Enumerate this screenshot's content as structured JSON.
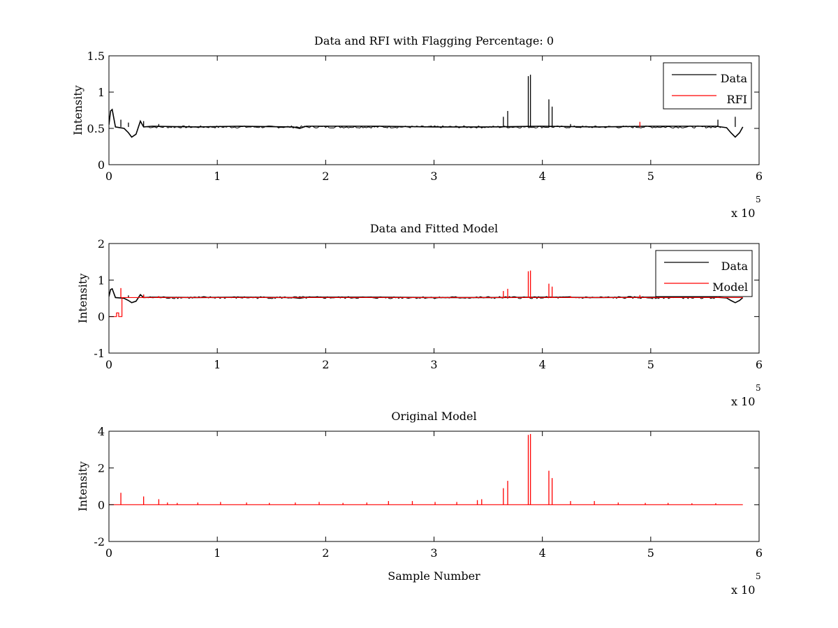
{
  "chart_data": [
    {
      "type": "line",
      "title": "Data and RFI with Flagging Percentage: 0",
      "xlabel": "",
      "ylabel": "Intensity",
      "xlim": [
        0,
        600000
      ],
      "ylim": [
        0,
        1.5
      ],
      "xticks": [
        0,
        100000,
        200000,
        300000,
        400000,
        500000,
        600000
      ],
      "xtick_labels": [
        "0",
        "1",
        "2",
        "3",
        "4",
        "5",
        "6"
      ],
      "yticks": [
        0,
        0.5,
        1,
        1.5
      ],
      "ytick_labels": [
        "0",
        "0.5",
        "1",
        "1.5"
      ],
      "x_multiplier": {
        "prefix": "x 10",
        "exponent": "5"
      },
      "grid": false,
      "legend": {
        "position": "top-right",
        "entries": [
          "Data",
          "RFI"
        ]
      },
      "series": [
        {
          "name": "Data",
          "color": "#000000",
          "baseline": 0.52,
          "x": [
            0,
            1500,
            3000,
            6000,
            10000,
            14000,
            18000,
            21000,
            25000,
            29000,
            32000,
            40000,
            80000,
            120000,
            170000,
            176000,
            182000,
            250000,
            300000,
            350000,
            400000,
            450000,
            500000,
            540000,
            560000,
            570000,
            574000,
            578000,
            582000,
            585000
          ],
          "y": [
            0.55,
            0.74,
            0.76,
            0.52,
            0.51,
            0.5,
            0.44,
            0.38,
            0.42,
            0.6,
            0.52,
            0.53,
            0.52,
            0.53,
            0.52,
            0.5,
            0.53,
            0.53,
            0.52,
            0.52,
            0.53,
            0.52,
            0.53,
            0.53,
            0.53,
            0.51,
            0.44,
            0.38,
            0.44,
            0.52
          ],
          "spikes": [
            {
              "x": 11000,
              "y": 0.62
            },
            {
              "x": 18000,
              "y": 0.58
            },
            {
              "x": 32000,
              "y": 0.6
            },
            {
              "x": 46000,
              "y": 0.56
            },
            {
              "x": 364000,
              "y": 0.66
            },
            {
              "x": 368000,
              "y": 0.74
            },
            {
              "x": 387000,
              "y": 1.22
            },
            {
              "x": 389000,
              "y": 1.24
            },
            {
              "x": 406000,
              "y": 0.9
            },
            {
              "x": 409000,
              "y": 0.8
            },
            {
              "x": 426000,
              "y": 0.56
            },
            {
              "x": 562000,
              "y": 0.62
            },
            {
              "x": 578000,
              "y": 0.66
            }
          ]
        },
        {
          "name": "RFI",
          "color": "#ff0000",
          "baseline": null,
          "x": [],
          "y": [],
          "spikes": [
            {
              "x": 490000,
              "y": 0.59
            }
          ]
        }
      ]
    },
    {
      "type": "line",
      "title": "Data and Fitted Model",
      "xlabel": "",
      "ylabel": "Intensity",
      "xlim": [
        0,
        600000
      ],
      "ylim": [
        -1,
        2
      ],
      "xticks": [
        0,
        100000,
        200000,
        300000,
        400000,
        500000,
        600000
      ],
      "xtick_labels": [
        "0",
        "1",
        "2",
        "3",
        "4",
        "5",
        "6"
      ],
      "yticks": [
        -1,
        0,
        1,
        2
      ],
      "ytick_labels": [
        "-1",
        "0",
        "1",
        "2"
      ],
      "x_multiplier": {
        "prefix": "x 10",
        "exponent": "5"
      },
      "grid": false,
      "legend": {
        "position": "top-right",
        "entries": [
          "Data",
          "Model"
        ]
      },
      "series": [
        {
          "name": "Data",
          "color": "#000000",
          "baseline": 0.52,
          "x": [
            0,
            1500,
            3000,
            6000,
            10000,
            14000,
            18000,
            21000,
            25000,
            29000,
            32000,
            40000,
            80000,
            120000,
            170000,
            176000,
            182000,
            250000,
            300000,
            350000,
            400000,
            450000,
            500000,
            540000,
            560000,
            570000,
            574000,
            578000,
            582000,
            585000
          ],
          "y": [
            0.55,
            0.74,
            0.76,
            0.52,
            0.51,
            0.5,
            0.44,
            0.38,
            0.42,
            0.6,
            0.52,
            0.53,
            0.52,
            0.53,
            0.52,
            0.5,
            0.53,
            0.53,
            0.52,
            0.52,
            0.53,
            0.52,
            0.53,
            0.53,
            0.53,
            0.51,
            0.44,
            0.38,
            0.44,
            0.52
          ],
          "spikes": [
            {
              "x": 18000,
              "y": 0.58
            },
            {
              "x": 32000,
              "y": 0.6
            }
          ]
        },
        {
          "name": "Model",
          "color": "#ff0000",
          "baseline": null,
          "x": [
            0,
            7000,
            7001,
            9000,
            9001,
            12000,
            12001,
            585000
          ],
          "y": [
            0,
            0,
            0.1,
            0.1,
            0,
            0,
            0.52,
            0.52
          ],
          "spikes": [
            {
              "x": 11000,
              "y": 0.78
            },
            {
              "x": 32000,
              "y": 0.6
            },
            {
              "x": 46000,
              "y": 0.56
            },
            {
              "x": 364000,
              "y": 0.7
            },
            {
              "x": 368000,
              "y": 0.76
            },
            {
              "x": 387000,
              "y": 1.24
            },
            {
              "x": 389000,
              "y": 1.26
            },
            {
              "x": 406000,
              "y": 0.9
            },
            {
              "x": 409000,
              "y": 0.82
            },
            {
              "x": 426000,
              "y": 0.56
            },
            {
              "x": 490000,
              "y": 0.59
            },
            {
              "x": 562000,
              "y": 0.6
            }
          ]
        }
      ]
    },
    {
      "type": "line",
      "title": "Original Model",
      "xlabel": "Sample Number",
      "ylabel": "Intensity",
      "xlim": [
        0,
        600000
      ],
      "ylim": [
        -2,
        4
      ],
      "xticks": [
        0,
        100000,
        200000,
        300000,
        400000,
        500000,
        600000
      ],
      "xtick_labels": [
        "0",
        "1",
        "2",
        "3",
        "4",
        "5",
        "6"
      ],
      "yticks": [
        -2,
        0,
        2,
        4
      ],
      "ytick_labels": [
        "-2",
        "0",
        "2",
        "4"
      ],
      "x_multiplier": {
        "prefix": "x 10",
        "exponent": "5"
      },
      "grid": false,
      "legend": null,
      "series": [
        {
          "name": "",
          "color": "#ff0000",
          "baseline": 0,
          "x": [
            0,
            585000
          ],
          "y": [
            0,
            0
          ],
          "spikes": [
            {
              "x": 11000,
              "y": 0.65
            },
            {
              "x": 32000,
              "y": 0.45
            },
            {
              "x": 46000,
              "y": 0.3
            },
            {
              "x": 54000,
              "y": 0.12
            },
            {
              "x": 63000,
              "y": 0.1
            },
            {
              "x": 82000,
              "y": 0.12
            },
            {
              "x": 103000,
              "y": 0.15
            },
            {
              "x": 127000,
              "y": 0.12
            },
            {
              "x": 148000,
              "y": 0.1
            },
            {
              "x": 172000,
              "y": 0.12
            },
            {
              "x": 194000,
              "y": 0.15
            },
            {
              "x": 216000,
              "y": 0.1
            },
            {
              "x": 238000,
              "y": 0.12
            },
            {
              "x": 258000,
              "y": 0.2
            },
            {
              "x": 280000,
              "y": 0.2
            },
            {
              "x": 301000,
              "y": 0.15
            },
            {
              "x": 321000,
              "y": 0.15
            },
            {
              "x": 340000,
              "y": 0.25
            },
            {
              "x": 344000,
              "y": 0.3
            },
            {
              "x": 364000,
              "y": 0.9
            },
            {
              "x": 368000,
              "y": 1.3
            },
            {
              "x": 387000,
              "y": 3.8
            },
            {
              "x": 389000,
              "y": 3.85
            },
            {
              "x": 406000,
              "y": 1.85
            },
            {
              "x": 409000,
              "y": 1.45
            },
            {
              "x": 426000,
              "y": 0.2
            },
            {
              "x": 448000,
              "y": 0.2
            },
            {
              "x": 470000,
              "y": 0.12
            },
            {
              "x": 495000,
              "y": 0.1
            },
            {
              "x": 516000,
              "y": 0.1
            },
            {
              "x": 538000,
              "y": 0.08
            },
            {
              "x": 560000,
              "y": 0.08
            }
          ]
        }
      ]
    }
  ]
}
